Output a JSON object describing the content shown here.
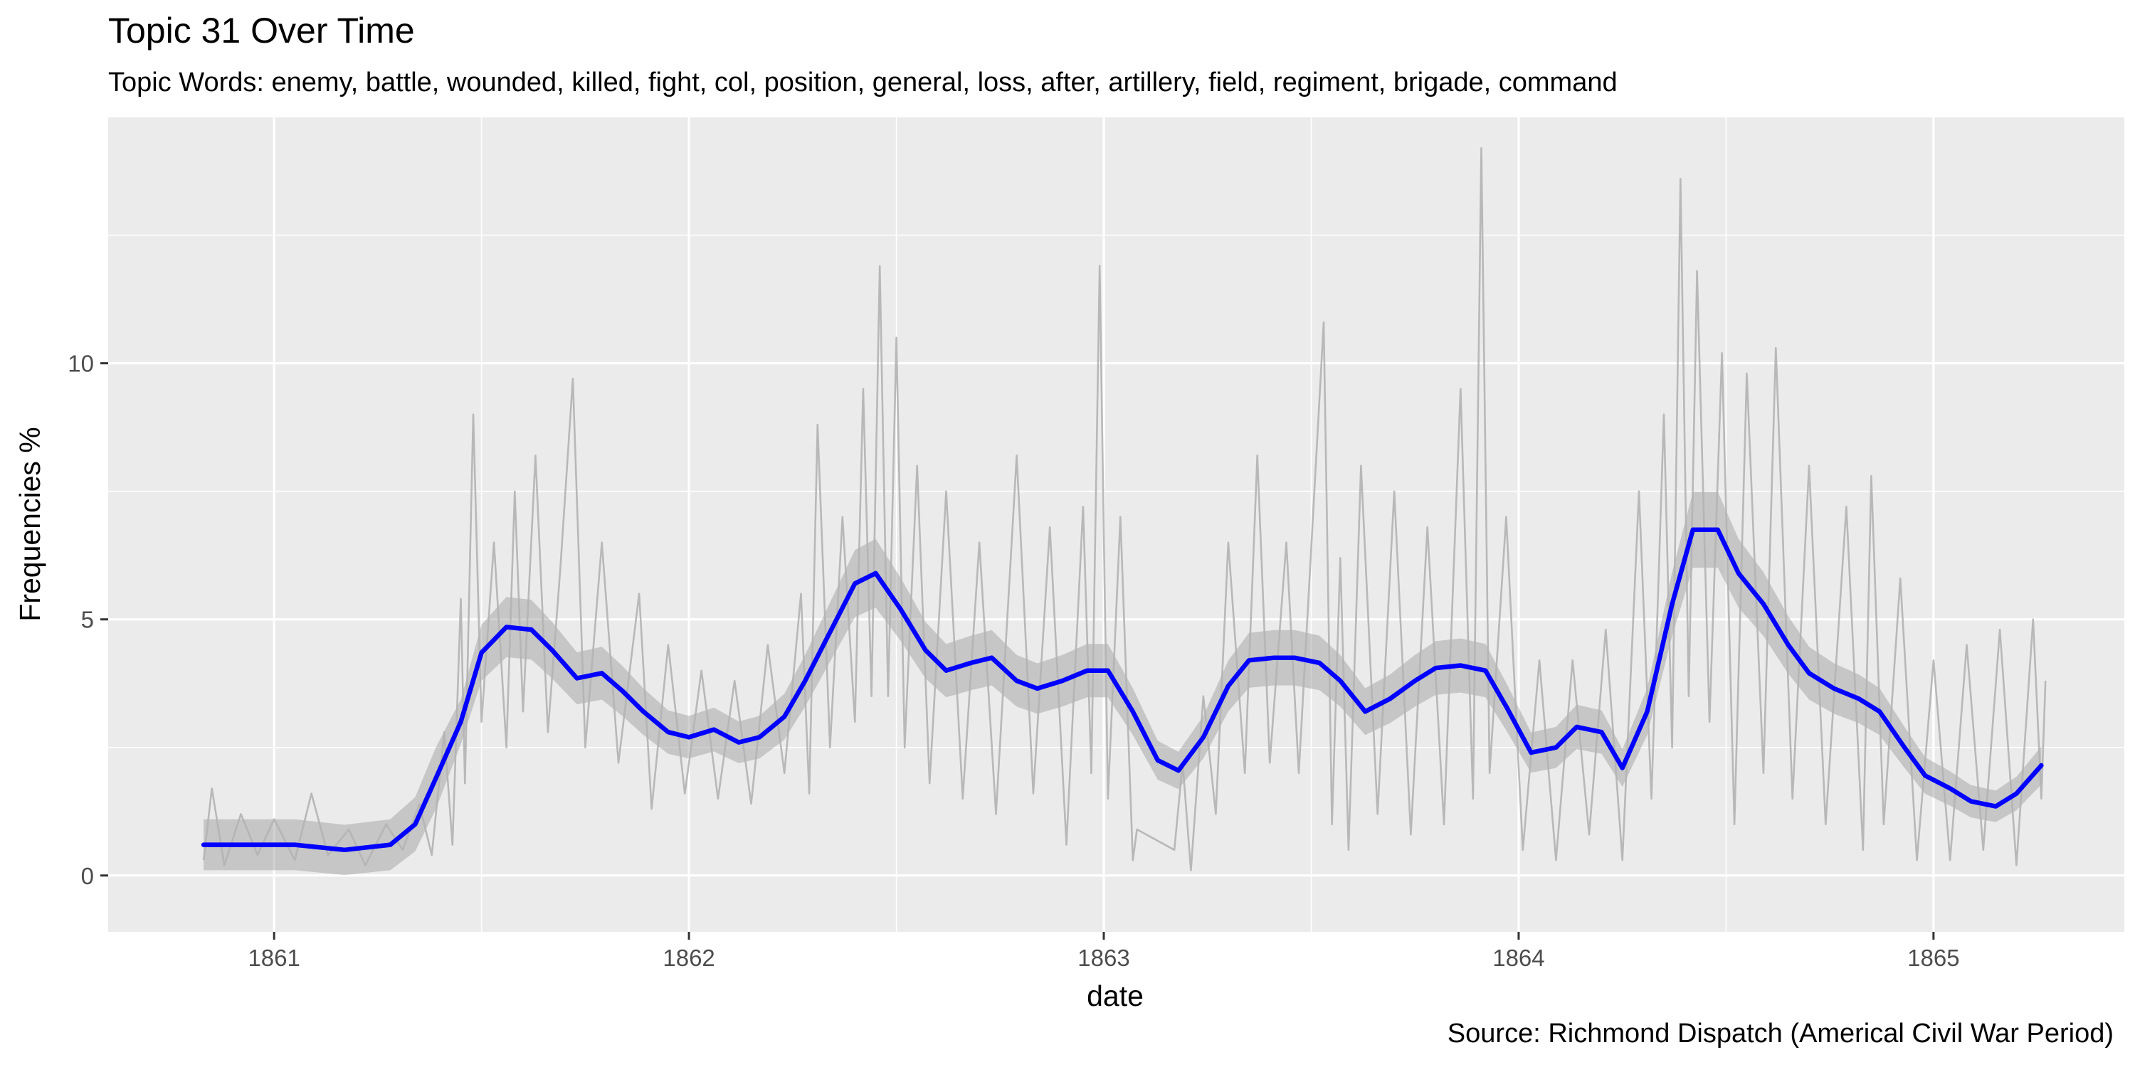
{
  "chart_data": {
    "type": "line",
    "title": "Topic 31 Over Time",
    "subtitle": "Topic Words: enemy, battle, wounded, killed, fight, col, position, general, loss, after, artillery, field, regiment, brigade, command",
    "caption": "Source: Richmond Dispatch (Americal Civil War Period)",
    "xlabel": "date",
    "ylabel": "Frequencies %",
    "x_ticks": [
      "1861",
      "1862",
      "1863",
      "1864",
      "1865"
    ],
    "y_ticks": [
      "0",
      "5",
      "10"
    ],
    "x_range": [
      1860.6,
      1865.46
    ],
    "y_range": [
      -1.1,
      14.8
    ],
    "grid": true,
    "colors": {
      "panel_background": "#ebebeb",
      "grid": "#ffffff",
      "raw_series": "#b3b3b3",
      "confidence_band": "#999999",
      "smooth_line": "#0000ff"
    },
    "series": [
      {
        "style": "raw daily frequencies (approximate envelope)",
        "points": [
          [
            1860.83,
            0.3
          ],
          [
            1860.85,
            1.7
          ],
          [
            1860.88,
            0.2
          ],
          [
            1860.92,
            1.2
          ],
          [
            1860.96,
            0.4
          ],
          [
            1861.0,
            1.1
          ],
          [
            1861.05,
            0.3
          ],
          [
            1861.09,
            1.6
          ],
          [
            1861.13,
            0.4
          ],
          [
            1861.18,
            0.9
          ],
          [
            1861.22,
            0.2
          ],
          [
            1861.27,
            1.0
          ],
          [
            1861.31,
            0.5
          ],
          [
            1861.35,
            1.4
          ],
          [
            1861.38,
            0.4
          ],
          [
            1861.41,
            2.8
          ],
          [
            1861.43,
            0.6
          ],
          [
            1861.45,
            5.4
          ],
          [
            1861.46,
            1.8
          ],
          [
            1861.48,
            9.0
          ],
          [
            1861.5,
            3.0
          ],
          [
            1861.53,
            6.5
          ],
          [
            1861.56,
            2.5
          ],
          [
            1861.58,
            7.5
          ],
          [
            1861.6,
            3.2
          ],
          [
            1861.63,
            8.2
          ],
          [
            1861.66,
            2.8
          ],
          [
            1861.69,
            6.0
          ],
          [
            1861.72,
            9.7
          ],
          [
            1861.75,
            2.5
          ],
          [
            1861.79,
            6.5
          ],
          [
            1861.83,
            2.2
          ],
          [
            1861.88,
            5.5
          ],
          [
            1861.91,
            1.3
          ],
          [
            1861.95,
            4.5
          ],
          [
            1861.99,
            1.6
          ],
          [
            1862.03,
            4.0
          ],
          [
            1862.07,
            1.5
          ],
          [
            1862.11,
            3.8
          ],
          [
            1862.15,
            1.4
          ],
          [
            1862.19,
            4.5
          ],
          [
            1862.23,
            2.0
          ],
          [
            1862.27,
            5.5
          ],
          [
            1862.29,
            1.6
          ],
          [
            1862.31,
            8.8
          ],
          [
            1862.34,
            2.5
          ],
          [
            1862.37,
            7.0
          ],
          [
            1862.4,
            3.0
          ],
          [
            1862.42,
            9.5
          ],
          [
            1862.44,
            3.5
          ],
          [
            1862.46,
            11.9
          ],
          [
            1862.48,
            3.5
          ],
          [
            1862.5,
            10.5
          ],
          [
            1862.52,
            2.5
          ],
          [
            1862.55,
            8.0
          ],
          [
            1862.58,
            1.8
          ],
          [
            1862.62,
            7.5
          ],
          [
            1862.66,
            1.5
          ],
          [
            1862.7,
            6.5
          ],
          [
            1862.74,
            1.2
          ],
          [
            1862.79,
            8.2
          ],
          [
            1862.83,
            1.6
          ],
          [
            1862.87,
            6.8
          ],
          [
            1862.91,
            0.6
          ],
          [
            1862.95,
            7.2
          ],
          [
            1862.97,
            2.0
          ],
          [
            1862.99,
            11.9
          ],
          [
            1863.01,
            1.5
          ],
          [
            1863.04,
            7.0
          ],
          [
            1863.07,
            0.3
          ],
          [
            1863.08,
            0.9
          ],
          [
            1863.17,
            0.5
          ],
          [
            1863.19,
            2.2
          ],
          [
            1863.21,
            0.1
          ],
          [
            1863.24,
            3.5
          ],
          [
            1863.27,
            1.2
          ],
          [
            1863.3,
            6.5
          ],
          [
            1863.34,
            2.0
          ],
          [
            1863.37,
            8.2
          ],
          [
            1863.4,
            2.2
          ],
          [
            1863.44,
            6.5
          ],
          [
            1863.47,
            2.0
          ],
          [
            1863.53,
            10.8
          ],
          [
            1863.55,
            1.0
          ],
          [
            1863.57,
            6.2
          ],
          [
            1863.59,
            0.5
          ],
          [
            1863.62,
            8.0
          ],
          [
            1863.66,
            1.2
          ],
          [
            1863.7,
            7.5
          ],
          [
            1863.74,
            0.8
          ],
          [
            1863.78,
            6.8
          ],
          [
            1863.82,
            1.0
          ],
          [
            1863.86,
            9.5
          ],
          [
            1863.89,
            1.5
          ],
          [
            1863.91,
            14.2
          ],
          [
            1863.93,
            2.0
          ],
          [
            1863.97,
            7.0
          ],
          [
            1864.01,
            0.5
          ],
          [
            1864.05,
            4.2
          ],
          [
            1864.09,
            0.3
          ],
          [
            1864.13,
            4.2
          ],
          [
            1864.17,
            0.8
          ],
          [
            1864.21,
            4.8
          ],
          [
            1864.25,
            0.3
          ],
          [
            1864.29,
            7.5
          ],
          [
            1864.32,
            1.5
          ],
          [
            1864.35,
            9.0
          ],
          [
            1864.37,
            2.5
          ],
          [
            1864.39,
            13.6
          ],
          [
            1864.41,
            3.5
          ],
          [
            1864.43,
            11.8
          ],
          [
            1864.46,
            3.0
          ],
          [
            1864.49,
            10.2
          ],
          [
            1864.52,
            1.0
          ],
          [
            1864.55,
            9.8
          ],
          [
            1864.59,
            2.0
          ],
          [
            1864.62,
            10.3
          ],
          [
            1864.66,
            1.5
          ],
          [
            1864.7,
            8.0
          ],
          [
            1864.74,
            1.0
          ],
          [
            1864.79,
            7.2
          ],
          [
            1864.83,
            0.5
          ],
          [
            1864.85,
            7.8
          ],
          [
            1864.88,
            1.0
          ],
          [
            1864.92,
            5.8
          ],
          [
            1864.96,
            0.3
          ],
          [
            1865.0,
            4.2
          ],
          [
            1865.04,
            0.3
          ],
          [
            1865.08,
            4.5
          ],
          [
            1865.12,
            0.5
          ],
          [
            1865.16,
            4.8
          ],
          [
            1865.2,
            0.2
          ],
          [
            1865.24,
            5.0
          ],
          [
            1865.26,
            1.5
          ],
          [
            1865.27,
            3.8
          ]
        ]
      },
      {
        "style": "smoothed trend",
        "points": [
          [
            1860.83,
            0.6
          ],
          [
            1860.9,
            0.6
          ],
          [
            1861.0,
            0.6
          ],
          [
            1861.05,
            0.6
          ],
          [
            1861.17,
            0.5
          ],
          [
            1861.28,
            0.6
          ],
          [
            1861.34,
            1.0
          ],
          [
            1861.39,
            1.9
          ],
          [
            1861.45,
            3.0
          ],
          [
            1861.5,
            4.35
          ],
          [
            1861.56,
            4.85
          ],
          [
            1861.62,
            4.8
          ],
          [
            1861.67,
            4.4
          ],
          [
            1861.73,
            3.85
          ],
          [
            1861.79,
            3.95
          ],
          [
            1861.84,
            3.6
          ],
          [
            1861.89,
            3.2
          ],
          [
            1861.95,
            2.8
          ],
          [
            1862.0,
            2.7
          ],
          [
            1862.06,
            2.85
          ],
          [
            1862.12,
            2.6
          ],
          [
            1862.17,
            2.7
          ],
          [
            1862.23,
            3.1
          ],
          [
            1862.28,
            3.8
          ],
          [
            1862.34,
            4.75
          ],
          [
            1862.4,
            5.7
          ],
          [
            1862.45,
            5.9
          ],
          [
            1862.51,
            5.2
          ],
          [
            1862.57,
            4.4
          ],
          [
            1862.62,
            4.0
          ],
          [
            1862.68,
            4.15
          ],
          [
            1862.73,
            4.25
          ],
          [
            1862.79,
            3.8
          ],
          [
            1862.84,
            3.65
          ],
          [
            1862.9,
            3.8
          ],
          [
            1862.96,
            4.0
          ],
          [
            1863.01,
            4.0
          ],
          [
            1863.07,
            3.2
          ],
          [
            1863.13,
            2.25
          ],
          [
            1863.18,
            2.05
          ],
          [
            1863.24,
            2.7
          ],
          [
            1863.3,
            3.7
          ],
          [
            1863.35,
            4.2
          ],
          [
            1863.41,
            4.25
          ],
          [
            1863.46,
            4.25
          ],
          [
            1863.52,
            4.15
          ],
          [
            1863.57,
            3.8
          ],
          [
            1863.63,
            3.2
          ],
          [
            1863.69,
            3.45
          ],
          [
            1863.75,
            3.8
          ],
          [
            1863.8,
            4.05
          ],
          [
            1863.86,
            4.1
          ],
          [
            1863.92,
            4.0
          ],
          [
            1863.97,
            3.3
          ],
          [
            1864.03,
            2.4
          ],
          [
            1864.09,
            2.5
          ],
          [
            1864.14,
            2.9
          ],
          [
            1864.2,
            2.8
          ],
          [
            1864.25,
            2.1
          ],
          [
            1864.31,
            3.2
          ],
          [
            1864.37,
            5.3
          ],
          [
            1864.42,
            6.75
          ],
          [
            1864.48,
            6.75
          ],
          [
            1864.53,
            5.9
          ],
          [
            1864.59,
            5.3
          ],
          [
            1864.65,
            4.5
          ],
          [
            1864.7,
            3.95
          ],
          [
            1864.76,
            3.65
          ],
          [
            1864.82,
            3.45
          ],
          [
            1864.87,
            3.2
          ],
          [
            1864.93,
            2.5
          ],
          [
            1864.98,
            1.95
          ],
          [
            1865.04,
            1.7
          ],
          [
            1865.09,
            1.45
          ],
          [
            1865.15,
            1.35
          ],
          [
            1865.2,
            1.6
          ],
          [
            1865.26,
            2.15
          ]
        ]
      }
    ]
  }
}
